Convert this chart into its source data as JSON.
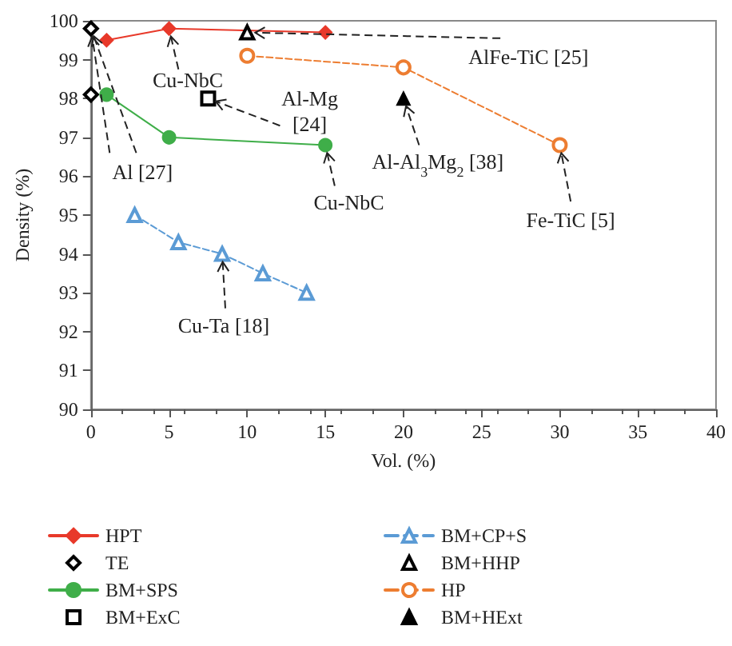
{
  "chart_data": {
    "type": "scatter",
    "xlabel": "Vol. (%)",
    "ylabel": "Density (%)",
    "xlim": [
      0,
      40
    ],
    "xticks": [
      0,
      5,
      10,
      15,
      20,
      25,
      30,
      35,
      40
    ],
    "ylim": [
      90,
      100
    ],
    "yticks": [
      90,
      91,
      92,
      93,
      94,
      95,
      96,
      97,
      98,
      99,
      100
    ],
    "grid": false,
    "legend": "bottom",
    "series": [
      {
        "name": "HPT",
        "type": "line",
        "marker": "diamond",
        "line_style": "solid",
        "color": "#e8392a",
        "x": [
          1,
          5,
          15
        ],
        "values": [
          99.5,
          99.8,
          99.7
        ]
      },
      {
        "name": "TE",
        "marker": "diamond",
        "color": "#000000",
        "x": [
          0,
          0
        ],
        "values": [
          99.8,
          98.1
        ]
      },
      {
        "name": "BM+SPS",
        "type": "line",
        "marker": "circle",
        "line_style": "solid",
        "color": "#3fae49",
        "x": [
          1,
          5,
          15
        ],
        "values": [
          98.1,
          97.0,
          96.8
        ]
      },
      {
        "name": "BM+ExC",
        "marker": "square",
        "color": "#000000",
        "x": [
          7.5
        ],
        "values": [
          98.0
        ]
      },
      {
        "name": "BM+CP+S",
        "type": "line",
        "marker": "triangle",
        "line_style": "dashed",
        "color": "#5b9bd5",
        "x": [
          2.8,
          5.6,
          8.4,
          11,
          13.8
        ],
        "values": [
          95.0,
          94.3,
          94.0,
          93.5,
          93.0
        ]
      },
      {
        "name": "BM+HHP",
        "marker": "triangle",
        "color": "#000000",
        "x": [
          10
        ],
        "values": [
          99.7
        ]
      },
      {
        "name": "HP",
        "type": "line",
        "marker": "circle",
        "line_style": "dashed",
        "color": "#ed7d31",
        "x": [
          10,
          20,
          30
        ],
        "values": [
          99.1,
          98.8,
          96.8
        ]
      },
      {
        "name": "BM+HExt",
        "marker": "triangle",
        "color": "#000000",
        "x": [
          20
        ],
        "values": [
          98.0
        ]
      }
    ],
    "annotations": [
      {
        "text": "Cu-NbC",
        "x": 5,
        "y": 99.8
      },
      {
        "text": "Al-Mg\n[24]",
        "x": 7.5,
        "y": 98.0
      },
      {
        "text": "Al [27]",
        "x": 0,
        "y": 99.8
      },
      {
        "text": "Cu-NbC",
        "x": 15,
        "y": 96.8
      },
      {
        "text": "AlFe-TiC [25]",
        "x": 10,
        "y": 99.7
      },
      {
        "text": "Al-Al$_{3}$Mg$_{2}$ [38]",
        "x": 20,
        "y": 98.0
      },
      {
        "text": "Fe-TiC [5]",
        "x": 30,
        "y": 96.8
      },
      {
        "text": "Cu-Ta [18]",
        "x": 8.4,
        "y": 94.0
      }
    ]
  }
}
